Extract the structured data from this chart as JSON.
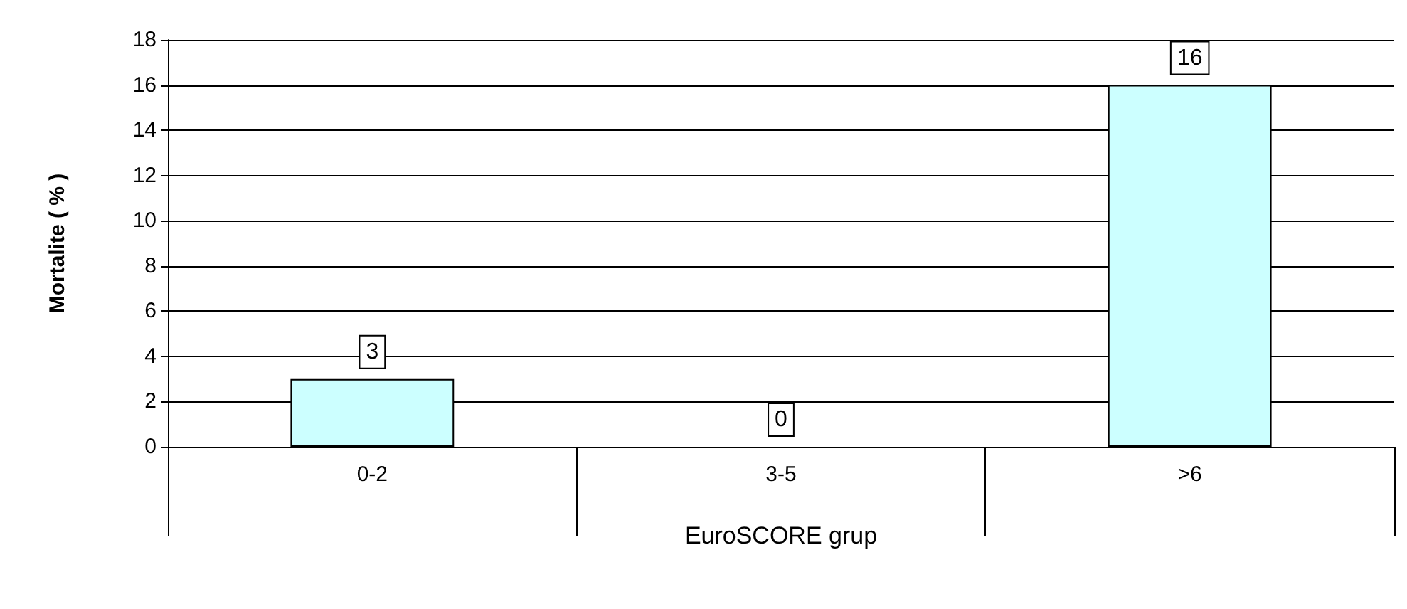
{
  "chart_data": {
    "type": "bar",
    "xlabel": "EuroSCORE grup",
    "ylabel": "Mortalite ( % )",
    "categories": [
      "0-2",
      "3-5",
      ">6"
    ],
    "values": [
      3,
      0,
      16
    ],
    "color": "#ccffff",
    "ylim": [
      0,
      18
    ],
    "yticks": [
      0,
      2,
      4,
      6,
      8,
      10,
      12,
      14,
      16,
      18
    ],
    "grid": "y",
    "data_labels": true
  }
}
